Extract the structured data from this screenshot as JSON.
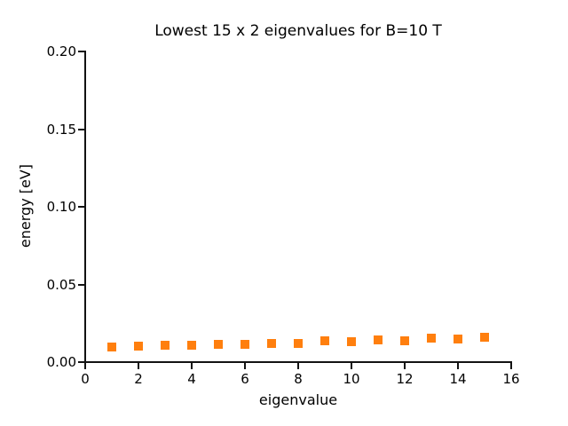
{
  "chart_data": {
    "type": "scatter",
    "title": "Lowest 15 x 2 eigenvalues for B=10 T",
    "xlabel": "eigenvalue",
    "ylabel": "energy [eV]",
    "xlim": [
      0,
      16
    ],
    "ylim": [
      0.0,
      0.2
    ],
    "grid": false,
    "legend_position": "none",
    "x_ticks": {
      "values": [
        0,
        2,
        4,
        6,
        8,
        10,
        12,
        14,
        16
      ],
      "labels": [
        "0",
        "2",
        "4",
        "6",
        "8",
        "10",
        "12",
        "14",
        "16"
      ]
    },
    "y_ticks": {
      "values": [
        0.0,
        0.05,
        0.1,
        0.15,
        0.2
      ],
      "labels": [
        "0.00",
        "0.05",
        "0.10",
        "0.15",
        "0.20"
      ]
    },
    "series": [
      {
        "name": "eigenvalues",
        "marker": "square",
        "color": "#ff7f0e",
        "x": [
          1,
          2,
          3,
          4,
          5,
          6,
          7,
          8,
          9,
          10,
          11,
          12,
          13,
          14,
          15
        ],
        "y": [
          0.0095,
          0.0102,
          0.0106,
          0.0106,
          0.0116,
          0.0112,
          0.012,
          0.0118,
          0.0135,
          0.0131,
          0.0141,
          0.0136,
          0.0152,
          0.0147,
          0.0158
        ]
      }
    ]
  }
}
